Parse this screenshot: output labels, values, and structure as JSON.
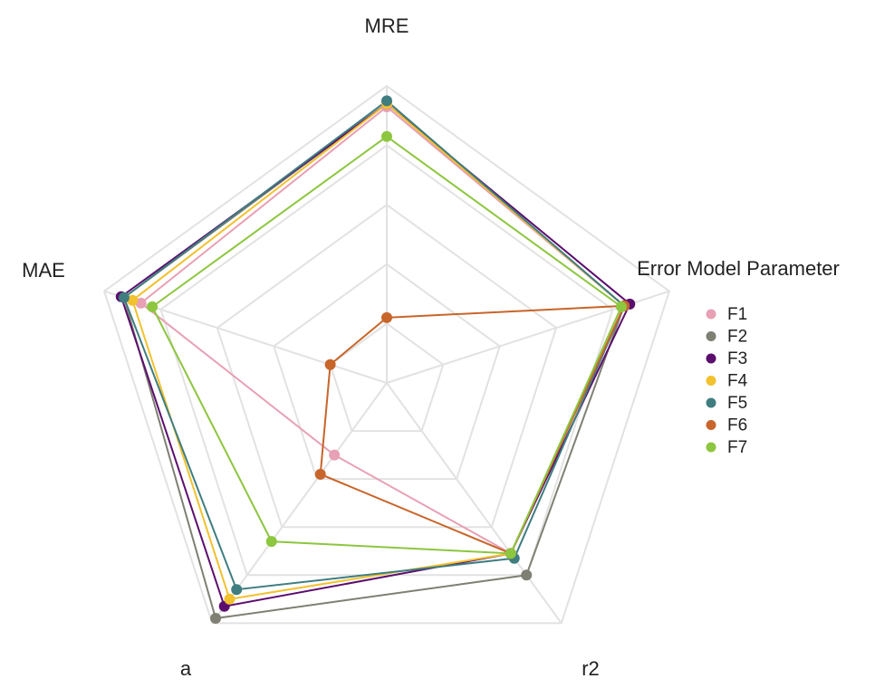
{
  "chart_data": {
    "type": "radar",
    "categories": [
      "MRE",
      "Error Model Parameter",
      "r2",
      "a",
      "MAE"
    ],
    "ylim": [
      0,
      1
    ],
    "yticks": [
      0.2,
      0.4,
      0.6,
      0.8,
      1
    ],
    "grid": true,
    "legend": "right",
    "series": [
      {
        "name": "F1",
        "color": "#e8a0b4",
        "values": [
          0.93,
          0.84,
          0.71,
          0.3,
          0.87
        ]
      },
      {
        "name": "F2",
        "color": "#7f7f73",
        "values": [
          0.94,
          0.84,
          0.8,
          0.98,
          0.93
        ]
      },
      {
        "name": "F3",
        "color": "#5c0e6e",
        "values": [
          0.94,
          0.86,
          0.71,
          0.93,
          0.94
        ]
      },
      {
        "name": "F4",
        "color": "#f2c12e",
        "values": [
          0.94,
          0.84,
          0.71,
          0.9,
          0.9
        ]
      },
      {
        "name": "F5",
        "color": "#3f7d80",
        "values": [
          0.95,
          0.84,
          0.73,
          0.86,
          0.93
        ]
      },
      {
        "name": "F6",
        "color": "#c8652a",
        "values": [
          0.22,
          0.84,
          0.71,
          0.38,
          0.2
        ]
      },
      {
        "name": "F7",
        "color": "#8dc63f",
        "values": [
          0.83,
          0.83,
          0.71,
          0.66,
          0.83
        ]
      }
    ]
  }
}
